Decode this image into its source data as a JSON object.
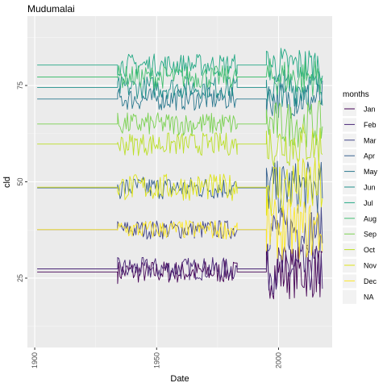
{
  "chart_data": {
    "type": "line",
    "title": "Mudumalai",
    "xlabel": "Date",
    "ylabel": "cld",
    "xlim": [
      1897,
      2022
    ],
    "ylim": [
      7,
      93
    ],
    "x_ticks": [
      {
        "value": 1900,
        "label": "1900"
      },
      {
        "value": 1950,
        "label": "1950"
      },
      {
        "value": 2000,
        "label": "2000"
      }
    ],
    "y_ticks": [
      {
        "value": 25,
        "label": "25"
      },
      {
        "value": 50,
        "label": "50"
      },
      {
        "value": 75,
        "label": "75"
      }
    ],
    "grid": true,
    "legend": {
      "title": "months",
      "position": "right"
    },
    "series": [
      {
        "name": "Jan",
        "color": "#440154",
        "base": 26.6,
        "noise": 3.0,
        "tail": 7.0
      },
      {
        "name": "Feb",
        "color": "#482576",
        "base": 27.4,
        "noise": 3.0,
        "tail": 6.5
      },
      {
        "name": "Mar",
        "color": "#414487",
        "base": 37.6,
        "noise": 2.5,
        "tail": 6.0
      },
      {
        "name": "Apr",
        "color": "#35608D",
        "base": 48.4,
        "noise": 3.0,
        "tail": 7.0
      },
      {
        "name": "May",
        "color": "#2A788E",
        "base": 71.5,
        "noise": 3.0,
        "tail": 5.0
      },
      {
        "name": "Jun",
        "color": "#21908C",
        "base": 74.5,
        "noise": 3.0,
        "tail": 5.0
      },
      {
        "name": "Jul",
        "color": "#22A884",
        "base": 80.3,
        "noise": 3.0,
        "tail": 5.0
      },
      {
        "name": "Aug",
        "color": "#43BF71",
        "base": 77.2,
        "noise": 3.0,
        "tail": 5.0
      },
      {
        "name": "Sep",
        "color": "#7AD151",
        "base": 65.0,
        "noise": 3.0,
        "tail": 6.0
      },
      {
        "name": "Oct",
        "color": "#BBDF27",
        "base": 59.8,
        "noise": 3.0,
        "tail": 6.0
      },
      {
        "name": "Nov",
        "color": "#DDE318",
        "base": 48.6,
        "noise": 3.5,
        "tail": 8.0
      },
      {
        "name": "Dec",
        "color": "#FDE725",
        "base": 37.6,
        "noise": 2.5,
        "tail": 8.0
      },
      {
        "name": "NA",
        "color": "#7F7F7F",
        "base": null,
        "noise": 0,
        "tail": 0
      }
    ],
    "segments": {
      "flat_start": 1901,
      "variable_start": 1934,
      "variable_end": 1983,
      "flat2_end": 1995,
      "end": 2018
    }
  }
}
